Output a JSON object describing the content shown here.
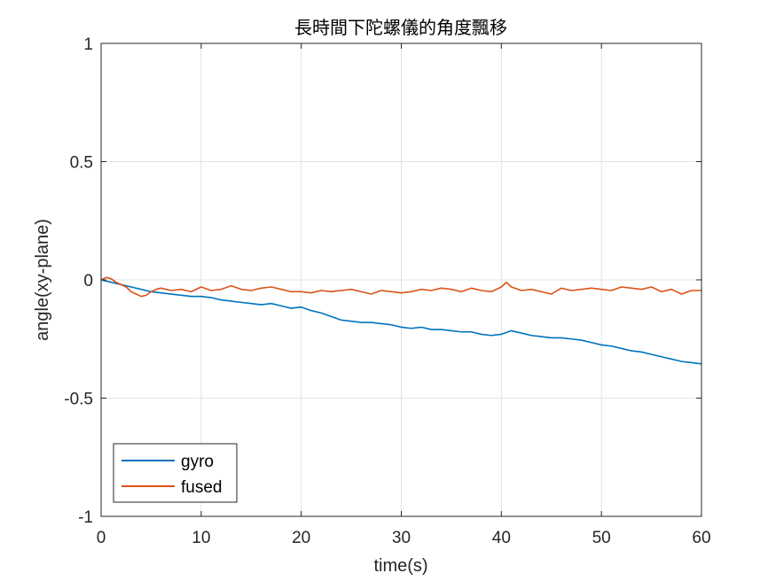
{
  "chart_data": {
    "type": "line",
    "title": "長時間下陀螺儀的角度飄移",
    "xlabel": "time(s)",
    "ylabel": "angle(xy-plane)",
    "xlim": [
      0,
      60
    ],
    "ylim": [
      -1,
      1
    ],
    "xticks": [
      0,
      10,
      20,
      30,
      40,
      50,
      60
    ],
    "yticks": [
      1,
      0.5,
      0,
      -0.5,
      -1
    ],
    "xtick_labels": [
      "0",
      "10",
      "20",
      "30",
      "40",
      "50",
      "60"
    ],
    "ytick_labels": [
      "1",
      "0.5",
      "0",
      "-0.5",
      "-1"
    ],
    "grid": true,
    "legend_position": "bottom-left",
    "series": [
      {
        "name": "gyro",
        "color": "#0072BD",
        "x": [
          0,
          1,
          2,
          3,
          4,
          5,
          6,
          7,
          8,
          9,
          10,
          11,
          12,
          13,
          14,
          15,
          16,
          17,
          18,
          19,
          20,
          21,
          22,
          23,
          24,
          25,
          26,
          27,
          28,
          29,
          30,
          31,
          32,
          33,
          34,
          35,
          36,
          37,
          38,
          39,
          40,
          41,
          42,
          43,
          44,
          45,
          46,
          47,
          48,
          49,
          50,
          51,
          52,
          53,
          54,
          55,
          56,
          57,
          58,
          59,
          60
        ],
        "y": [
          0.0,
          -0.01,
          -0.02,
          -0.03,
          -0.04,
          -0.05,
          -0.055,
          -0.06,
          -0.065,
          -0.07,
          -0.07,
          -0.075,
          -0.085,
          -0.09,
          -0.095,
          -0.1,
          -0.105,
          -0.1,
          -0.11,
          -0.12,
          -0.115,
          -0.13,
          -0.14,
          -0.155,
          -0.17,
          -0.175,
          -0.18,
          -0.18,
          -0.185,
          -0.19,
          -0.2,
          -0.205,
          -0.2,
          -0.21,
          -0.21,
          -0.215,
          -0.22,
          -0.22,
          -0.23,
          -0.235,
          -0.23,
          -0.215,
          -0.225,
          -0.235,
          -0.24,
          -0.245,
          -0.245,
          -0.25,
          -0.255,
          -0.265,
          -0.275,
          -0.28,
          -0.29,
          -0.3,
          -0.305,
          -0.315,
          -0.325,
          -0.335,
          -0.345,
          -0.35,
          -0.355
        ]
      },
      {
        "name": "fused",
        "color": "#D95319",
        "x": [
          0,
          0.5,
          1,
          1.5,
          2,
          2.5,
          3,
          3.5,
          4,
          4.5,
          5,
          5.5,
          6,
          6.5,
          7,
          8,
          9,
          10,
          11,
          12,
          13,
          14,
          15,
          16,
          17,
          18,
          19,
          20,
          21,
          22,
          23,
          24,
          25,
          26,
          27,
          28,
          29,
          30,
          31,
          32,
          33,
          34,
          35,
          36,
          37,
          38,
          39,
          40,
          40.5,
          41,
          42,
          43,
          44,
          45,
          46,
          47,
          48,
          49,
          50,
          51,
          52,
          53,
          54,
          55,
          56,
          57,
          58,
          59,
          60
        ],
        "y": [
          0.0,
          0.01,
          0.005,
          -0.01,
          -0.02,
          -0.03,
          -0.05,
          -0.06,
          -0.07,
          -0.065,
          -0.05,
          -0.04,
          -0.035,
          -0.04,
          -0.045,
          -0.04,
          -0.05,
          -0.03,
          -0.045,
          -0.04,
          -0.025,
          -0.04,
          -0.045,
          -0.035,
          -0.03,
          -0.04,
          -0.05,
          -0.05,
          -0.055,
          -0.045,
          -0.05,
          -0.045,
          -0.04,
          -0.05,
          -0.06,
          -0.045,
          -0.05,
          -0.055,
          -0.05,
          -0.04,
          -0.045,
          -0.035,
          -0.04,
          -0.05,
          -0.035,
          -0.045,
          -0.05,
          -0.03,
          -0.01,
          -0.03,
          -0.045,
          -0.04,
          -0.05,
          -0.06,
          -0.035,
          -0.045,
          -0.04,
          -0.035,
          -0.04,
          -0.045,
          -0.03,
          -0.035,
          -0.04,
          -0.03,
          -0.05,
          -0.04,
          -0.06,
          -0.045,
          -0.045
        ]
      }
    ]
  }
}
